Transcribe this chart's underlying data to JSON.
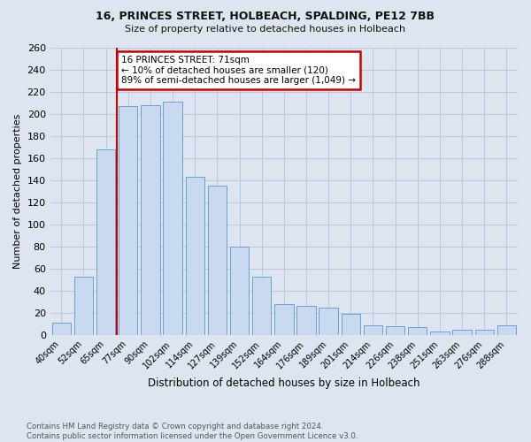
{
  "title_line1": "16, PRINCES STREET, HOLBEACH, SPALDING, PE12 7BB",
  "title_line2": "Size of property relative to detached houses in Holbeach",
  "xlabel": "Distribution of detached houses by size in Holbeach",
  "ylabel": "Number of detached properties",
  "footer_line1": "Contains HM Land Registry data © Crown copyright and database right 2024.",
  "footer_line2": "Contains public sector information licensed under the Open Government Licence v3.0.",
  "bar_labels": [
    "40sqm",
    "52sqm",
    "65sqm",
    "77sqm",
    "90sqm",
    "102sqm",
    "114sqm",
    "127sqm",
    "139sqm",
    "152sqm",
    "164sqm",
    "176sqm",
    "189sqm",
    "201sqm",
    "214sqm",
    "226sqm",
    "238sqm",
    "251sqm",
    "263sqm",
    "276sqm",
    "288sqm"
  ],
  "bar_values": [
    11,
    53,
    168,
    207,
    208,
    211,
    143,
    135,
    80,
    53,
    28,
    26,
    25,
    19,
    9,
    8,
    7,
    3,
    5,
    5,
    9
  ],
  "bar_color": "#c9d9f0",
  "bar_edge_color": "#6a9fd4",
  "annotation_text_line1": "16 PRINCES STREET: 71sqm",
  "annotation_text_line2": "← 10% of detached houses are smaller (120)",
  "annotation_text_line3": "89% of semi-detached houses are larger (1,049) →",
  "annotation_box_color": "#ffffff",
  "annotation_box_edge_color": "#cc0000",
  "red_line_x": 2.5,
  "ylim": [
    0,
    260
  ],
  "yticks": [
    0,
    20,
    40,
    60,
    80,
    100,
    120,
    140,
    160,
    180,
    200,
    220,
    240,
    260
  ],
  "grid_color": "#b8c8e0",
  "background_color": "#dde6f0",
  "plot_bg_color": "#dde6f0"
}
